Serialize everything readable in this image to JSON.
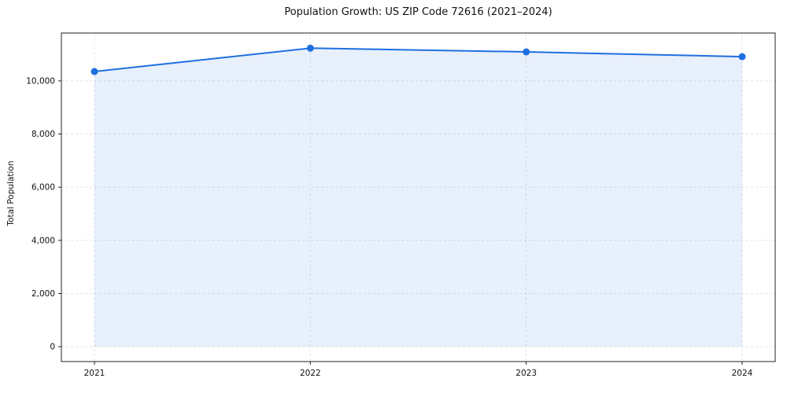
{
  "chart_data": {
    "type": "area",
    "title": "Population Growth: US ZIP Code 72616 (2021–2024)",
    "xlabel": "",
    "ylabel": "Total Population",
    "categories": [
      "2021",
      "2022",
      "2023",
      "2024"
    ],
    "values": [
      10350,
      11230,
      11090,
      10910
    ],
    "ylim": [
      -560,
      11800
    ],
    "yticks": [
      0,
      2000,
      4000,
      6000,
      8000,
      10000
    ],
    "ytick_labels": [
      "0",
      "2,000",
      "4,000",
      "6,000",
      "8,000",
      "10,000"
    ],
    "grid": true,
    "legend": "none",
    "line_color": "#1f6fe0",
    "fill_color": "#1f6fe0",
    "fill_opacity": 0.1,
    "grid_color": "#e0e0e0",
    "spine_color": "#222222",
    "marker": "circle"
  }
}
